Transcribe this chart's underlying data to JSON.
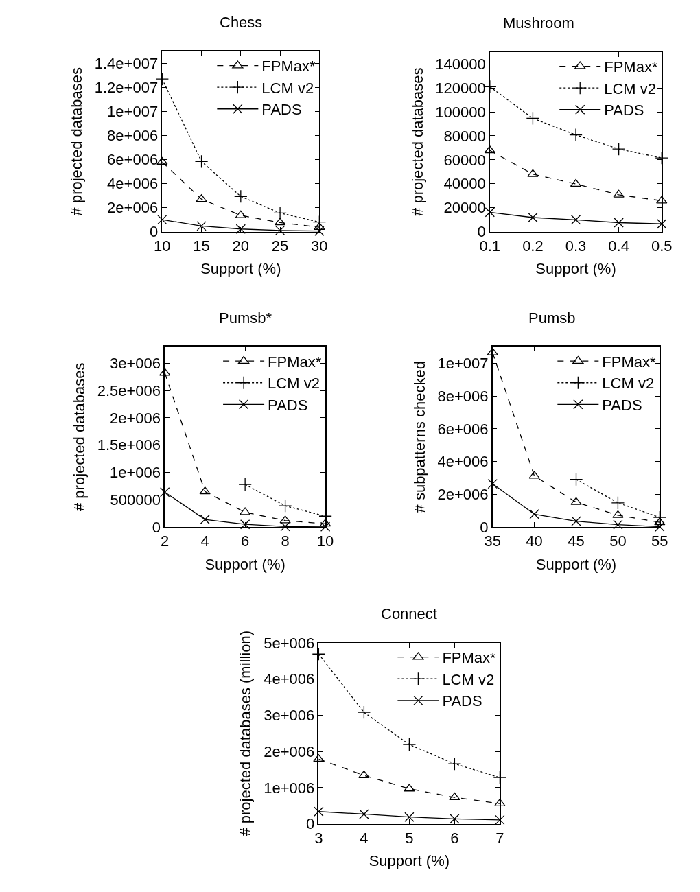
{
  "chart_data": [
    {
      "type": "line",
      "title": "Chess",
      "xlabel": "Support (%)",
      "ylabel": "# projected databases",
      "x": [
        10,
        15,
        20,
        25,
        30
      ],
      "xlim": [
        10,
        30
      ],
      "xticks": [
        10,
        15,
        20,
        25,
        30
      ],
      "ylim": [
        0,
        15000000
      ],
      "yticks": [
        0,
        {
          "value": 2000000,
          "label": "2e+006"
        },
        {
          "value": 4000000,
          "label": "4e+006"
        },
        {
          "value": 6000000,
          "label": "6e+006"
        },
        {
          "value": 8000000,
          "label": "8e+006"
        },
        {
          "value": 10000000,
          "label": "1e+007"
        },
        {
          "value": 12000000,
          "label": "1.2e+007"
        },
        {
          "value": 14000000,
          "label": "1.4e+007"
        }
      ],
      "legend": "top right",
      "series": [
        {
          "name": "FPMax*",
          "color": "#000000",
          "marker": "triangle",
          "line_style": "dashed",
          "values": [
            5800000,
            2700000,
            1360000,
            750000,
            370000
          ]
        },
        {
          "name": "LCM v2",
          "color": "#000000",
          "marker": "cross",
          "line_style": "dotted",
          "values": [
            12700000,
            5840000,
            2930000,
            1550000,
            800000
          ]
        },
        {
          "name": "PADS",
          "color": "#000000",
          "marker": "x",
          "line_style": "solid",
          "values": [
            1000000,
            470000,
            220000,
            100000,
            50000
          ]
        }
      ]
    },
    {
      "type": "line",
      "title": "Mushroom",
      "xlabel": "Support (%)",
      "ylabel": "# projected databases",
      "x": [
        0.1,
        0.2,
        0.3,
        0.4,
        0.5
      ],
      "xlim": [
        0.1,
        0.5
      ],
      "xticks": [
        0.1,
        0.2,
        0.3,
        0.4,
        0.5
      ],
      "ylim": [
        0,
        150000
      ],
      "yticks": [
        0,
        20000,
        40000,
        60000,
        80000,
        100000,
        120000,
        140000
      ],
      "legend": "top right",
      "series": [
        {
          "name": "FPMax*",
          "color": "#000000",
          "marker": "triangle",
          "line_style": "dashed",
          "values": [
            67800,
            48000,
            39800,
            30800,
            25800
          ]
        },
        {
          "name": "LCM v2",
          "color": "#000000",
          "marker": "cross",
          "line_style": "dotted",
          "values": [
            121000,
            94600,
            80800,
            69000,
            61600
          ]
        },
        {
          "name": "PADS",
          "color": "#000000",
          "marker": "x",
          "line_style": "solid",
          "values": [
            16200,
            11800,
            9900,
            7500,
            6500
          ]
        }
      ]
    },
    {
      "type": "line",
      "title": "Pumsb*",
      "xlabel": "Support (%)",
      "ylabel": "# projected databases",
      "x": [
        2,
        4,
        6,
        8,
        10
      ],
      "xlim": [
        2,
        10
      ],
      "xticks": [
        2,
        4,
        6,
        8,
        10
      ],
      "ylim": [
        0,
        3300000
      ],
      "yticks": [
        0,
        500000,
        {
          "value": 1000000,
          "label": "1e+006"
        },
        {
          "value": 1500000,
          "label": "1.5e+006"
        },
        {
          "value": 2000000,
          "label": "2e+006"
        },
        {
          "value": 2500000,
          "label": "2.5e+006"
        },
        {
          "value": 3000000,
          "label": "3e+006"
        }
      ],
      "legend": "top right",
      "series": [
        {
          "name": "FPMax*",
          "color": "#000000",
          "marker": "triangle",
          "line_style": "dashed",
          "values": [
            2820000,
            650000,
            270000,
            120000,
            60000
          ]
        },
        {
          "name": "LCM v2",
          "color": "#000000",
          "marker": "cross",
          "line_style": "dotted",
          "values": [
            null,
            null,
            780000,
            390000,
            200000
          ]
        },
        {
          "name": "PADS",
          "color": "#000000",
          "marker": "x",
          "line_style": "solid",
          "values": [
            640000,
            140000,
            50000,
            10000,
            5000
          ]
        }
      ]
    },
    {
      "type": "line",
      "title": "Pumsb",
      "xlabel": "Support (%)",
      "ylabel": "# subpatterns checked",
      "x": [
        35,
        40,
        45,
        50,
        55
      ],
      "xlim": [
        35,
        55
      ],
      "xticks": [
        35,
        40,
        45,
        50,
        55
      ],
      "ylim": [
        0,
        11000000
      ],
      "yticks": [
        0,
        {
          "value": 2000000,
          "label": "2e+006"
        },
        {
          "value": 4000000,
          "label": "4e+006"
        },
        {
          "value": 6000000,
          "label": "6e+006"
        },
        {
          "value": 8000000,
          "label": "8e+006"
        },
        {
          "value": 10000000,
          "label": "1e+007"
        }
      ],
      "legend": "top right",
      "series": [
        {
          "name": "FPMax*",
          "color": "#000000",
          "marker": "triangle",
          "line_style": "dashed",
          "values": [
            10640000,
            3120000,
            1520000,
            720000,
            290000
          ]
        },
        {
          "name": "LCM v2",
          "color": "#000000",
          "marker": "cross",
          "line_style": "dotted",
          "values": [
            null,
            null,
            2910000,
            1480000,
            590000
          ]
        },
        {
          "name": "PADS",
          "color": "#000000",
          "marker": "x",
          "line_style": "solid",
          "values": [
            2640000,
            790000,
            360000,
            150000,
            20000
          ]
        }
      ]
    },
    {
      "type": "line",
      "title": "Connect",
      "xlabel": "Support (%)",
      "ylabel": "# projected databases (million)",
      "x": [
        3,
        4,
        5,
        6,
        7
      ],
      "xlim": [
        3,
        7
      ],
      "xticks": [
        3,
        4,
        5,
        6,
        7
      ],
      "ylim": [
        0,
        5000000
      ],
      "yticks": [
        0,
        {
          "value": 1000000,
          "label": "1e+006"
        },
        {
          "value": 2000000,
          "label": "2e+006"
        },
        {
          "value": 3000000,
          "label": "3e+006"
        },
        {
          "value": 4000000,
          "label": "4e+006"
        },
        {
          "value": 5000000,
          "label": "5e+006"
        }
      ],
      "legend": "top right",
      "series": [
        {
          "name": "FPMax*",
          "color": "#000000",
          "marker": "triangle",
          "line_style": "dashed",
          "values": [
            1790000,
            1340000,
            970000,
            730000,
            560000
          ]
        },
        {
          "name": "LCM v2",
          "color": "#000000",
          "marker": "cross",
          "line_style": "dotted",
          "values": [
            4690000,
            3080000,
            2190000,
            1660000,
            1280000
          ]
        },
        {
          "name": "PADS",
          "color": "#000000",
          "marker": "x",
          "line_style": "solid",
          "values": [
            340000,
            270000,
            190000,
            140000,
            110000
          ]
        }
      ]
    }
  ]
}
